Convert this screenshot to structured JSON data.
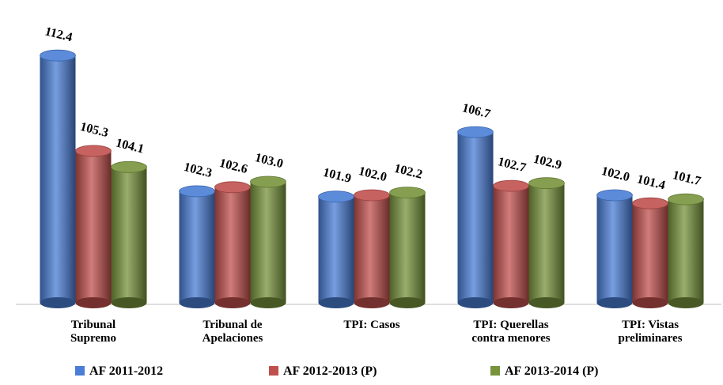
{
  "chart_data": {
    "type": "bar",
    "categories": [
      "Tribunal\nSupremo",
      "Tribunal de\nApelaciones",
      "TPI: Casos",
      "TPI: Querellas\ncontra menores",
      "TPI: Vistas\npreliminares"
    ],
    "series": [
      {
        "name": "AF 2011-2012",
        "color": "#4a7ed6",
        "values": [
          112.4,
          102.3,
          101.9,
          106.7,
          102.0
        ],
        "value_labels": [
          "112.4",
          "102.3",
          "101.9",
          "106.7",
          "102.0"
        ]
      },
      {
        "name": "AF 2012-2013 (P)",
        "color": "#c0504d",
        "values": [
          105.3,
          102.6,
          102.0,
          102.7,
          101.4
        ],
        "value_labels": [
          "105.3",
          "102.6",
          "102.0",
          "102.7",
          "101.4"
        ]
      },
      {
        "name": "AF 2013-2014 (P)",
        "color": "#77933c",
        "values": [
          104.1,
          103.0,
          102.2,
          102.9,
          101.7
        ],
        "value_labels": [
          "104.1",
          "103.0",
          "102.2",
          "102.9",
          "101.7"
        ]
      }
    ],
    "ylim": [
      94,
      113
    ]
  }
}
